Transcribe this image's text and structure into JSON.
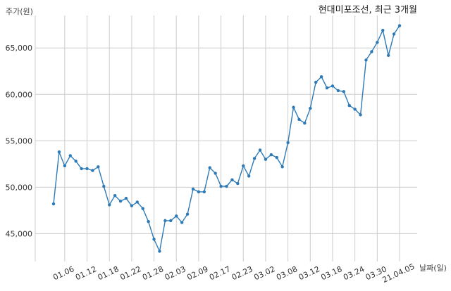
{
  "chart_data": {
    "type": "line",
    "title": "현대미포조선, 최근 3개월",
    "xlabel": "날짜(일)",
    "ylabel": "주가(원)",
    "ylim": [
      42000,
      68500
    ],
    "yticks": [
      45000,
      50000,
      55000,
      60000,
      65000
    ],
    "ytick_labels": [
      "45,000",
      "50,000",
      "55,000",
      "60,000",
      "65,000"
    ],
    "grid": true,
    "line_color": "#2e7ab6",
    "x": [
      "01.04",
      "01.05",
      "01.06",
      "01.07",
      "01.08",
      "01.11",
      "01.12",
      "01.13",
      "01.14",
      "01.15",
      "01.18",
      "01.19",
      "01.20",
      "01.21",
      "01.22",
      "01.25",
      "01.26",
      "01.27",
      "01.28",
      "01.29",
      "02.01",
      "02.02",
      "02.03",
      "02.04",
      "02.05",
      "02.08",
      "02.09",
      "02.10",
      "02.15",
      "02.16",
      "02.17",
      "02.18",
      "02.19",
      "02.22",
      "02.23",
      "02.24",
      "02.25",
      "02.26",
      "03.02",
      "03.03",
      "03.04",
      "03.05",
      "03.08",
      "03.09",
      "03.10",
      "03.11",
      "03.12",
      "03.15",
      "03.16",
      "03.17",
      "03.18",
      "03.19",
      "03.22",
      "03.23",
      "03.24",
      "03.25",
      "03.26",
      "03.29",
      "03.30",
      "03.31",
      "04.01",
      "04.02",
      "04.05"
    ],
    "xticks": [
      "01.06",
      "01.12",
      "01.18",
      "01.22",
      "01.28",
      "02.03",
      "02.09",
      "02.17",
      "02.23",
      "03.02",
      "03.08",
      "03.12",
      "03.18",
      "03.24",
      "03.30",
      "21.04.05"
    ],
    "xtick_positions": [
      "01.06",
      "01.12",
      "01.18",
      "01.22",
      "01.28",
      "02.03",
      "02.09",
      "02.17",
      "02.23",
      "03.02",
      "03.08",
      "03.12",
      "03.18",
      "03.24",
      "03.30",
      "04.05"
    ],
    "values": [
      48200,
      53800,
      52300,
      53400,
      52800,
      52000,
      52000,
      51800,
      52200,
      50100,
      48100,
      49100,
      48500,
      48800,
      48000,
      48400,
      47700,
      46300,
      44400,
      43100,
      46400,
      46400,
      46900,
      46200,
      47100,
      49800,
      49500,
      49500,
      52100,
      51500,
      50100,
      50100,
      50800,
      50400,
      52300,
      51200,
      53100,
      54000,
      53000,
      53500,
      53200,
      52200,
      54800,
      58600,
      57300,
      56900,
      58500,
      61300,
      61900,
      60700,
      60900,
      60400,
      60300,
      58800,
      58400,
      57800,
      63700,
      64600,
      65600,
      66900,
      64200,
      66500,
      67400
    ]
  }
}
